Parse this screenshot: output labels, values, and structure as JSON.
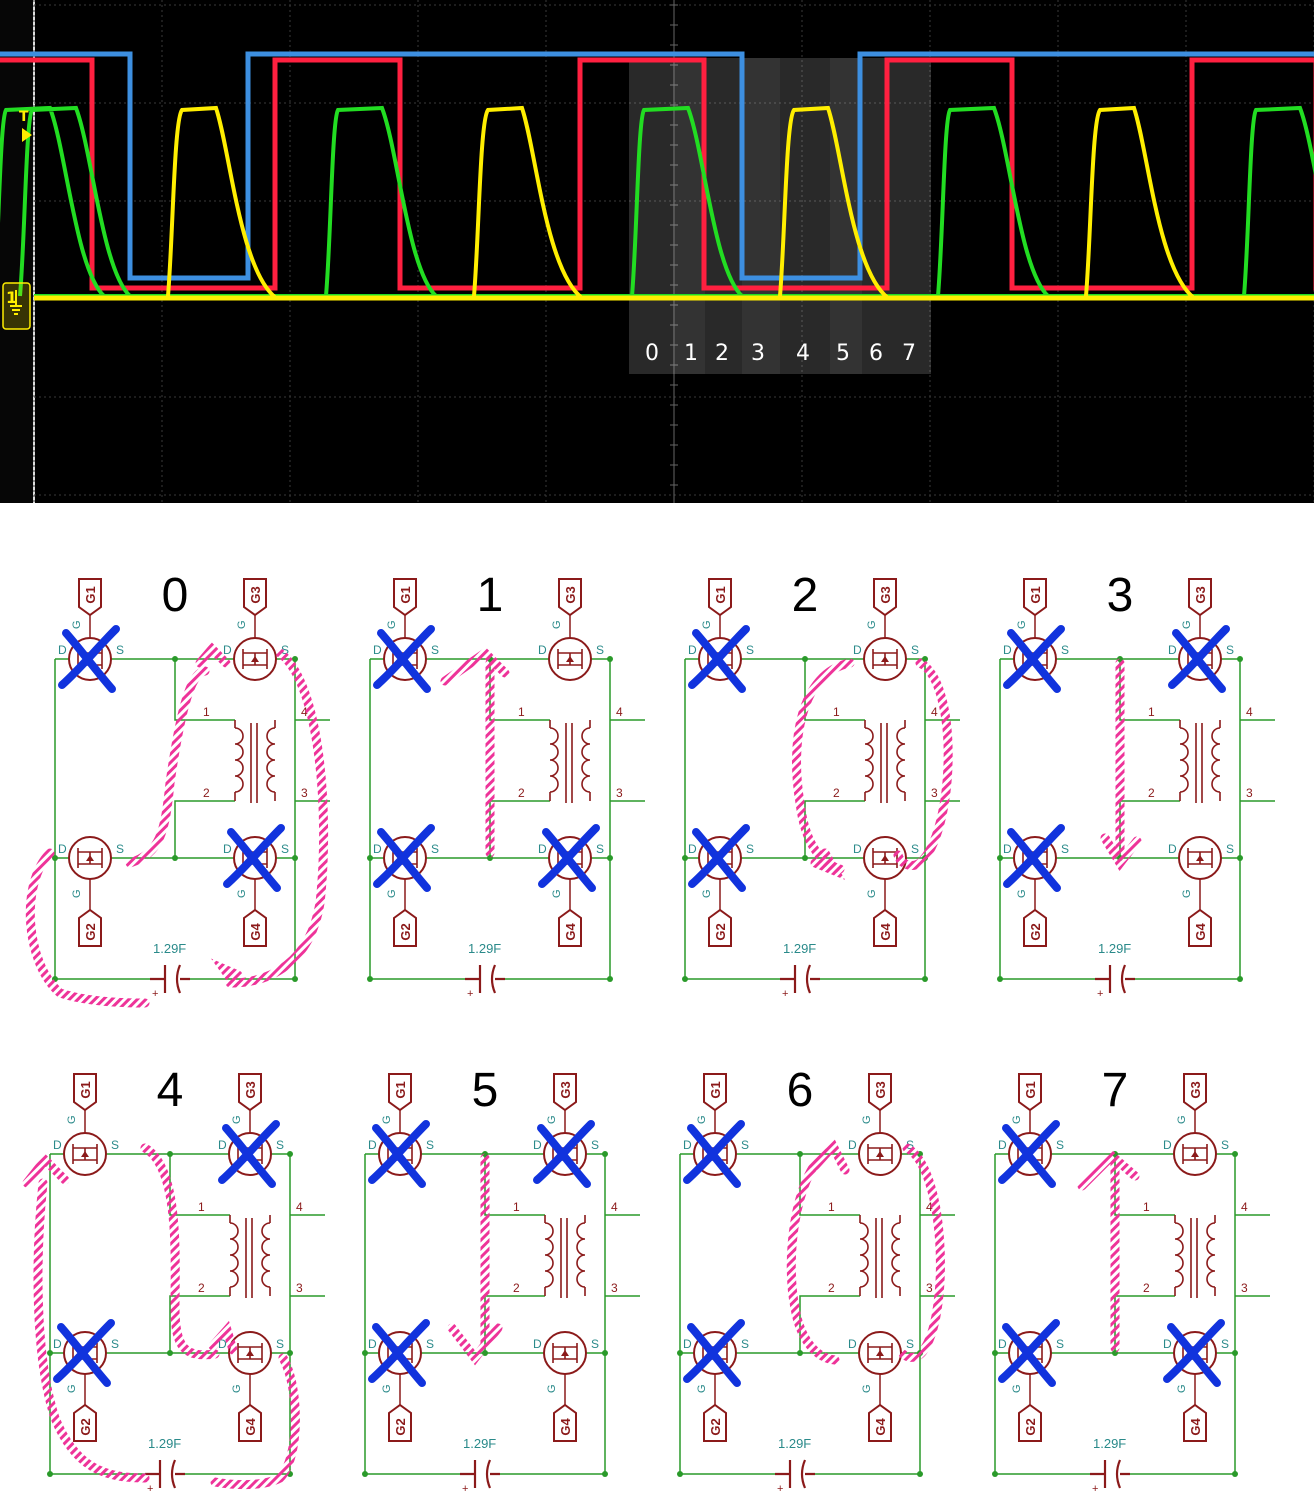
{
  "scope": {
    "trigger_label": "T",
    "channel_label": "1",
    "state_labels": [
      "0",
      "1",
      "2",
      "3",
      "4",
      "5",
      "6",
      "7"
    ],
    "trace_colors": {
      "ch1": "#ffee00",
      "ch2": "#22dd22",
      "ch3": "#3d8fe0",
      "ch4": "#ff2040"
    }
  },
  "panels": [
    {
      "title": "0",
      "g1": "G1",
      "g2": "G2",
      "g3": "G3",
      "g4": "G4",
      "cap": "1.29F",
      "plus": "+",
      "p1": "1",
      "p2": "2",
      "p3": "3",
      "p4": "4",
      "g": "G",
      "d": "D",
      "s": "S",
      "off": [
        "q1",
        "q4"
      ]
    },
    {
      "title": "1",
      "g1": "G1",
      "g2": "G2",
      "g3": "G3",
      "g4": "G4",
      "cap": "1.29F",
      "plus": "+",
      "p1": "1",
      "p2": "2",
      "p3": "3",
      "p4": "4",
      "g": "G",
      "d": "D",
      "s": "S",
      "off": [
        "q1",
        "q2",
        "q4"
      ]
    },
    {
      "title": "2",
      "g1": "G1",
      "g2": "G2",
      "g3": "G3",
      "g4": "G4",
      "cap": "1.29F",
      "plus": "+",
      "p1": "1",
      "p2": "2",
      "p3": "3",
      "p4": "4",
      "g": "G",
      "d": "D",
      "s": "S",
      "off": [
        "q1",
        "q2"
      ]
    },
    {
      "title": "3",
      "g1": "G1",
      "g2": "G2",
      "g3": "G3",
      "g4": "G4",
      "cap": "1.29F",
      "plus": "+",
      "p1": "1",
      "p2": "2",
      "p3": "3",
      "p4": "4",
      "g": "G",
      "d": "D",
      "s": "S",
      "off": [
        "q1",
        "q2",
        "q3"
      ]
    },
    {
      "title": "4",
      "g1": "G1",
      "g2": "G2",
      "g3": "G3",
      "g4": "G4",
      "cap": "1.29F",
      "plus": "+",
      "p1": "1",
      "p2": "2",
      "p3": "3",
      "p4": "4",
      "g": "G",
      "d": "D",
      "s": "S",
      "off": [
        "q2",
        "q3"
      ]
    },
    {
      "title": "5",
      "g1": "G1",
      "g2": "G2",
      "g3": "G3",
      "g4": "G4",
      "cap": "1.29F",
      "plus": "+",
      "p1": "1",
      "p2": "2",
      "p3": "3",
      "p4": "4",
      "g": "G",
      "d": "D",
      "s": "S",
      "off": [
        "q1",
        "q2",
        "q3"
      ]
    },
    {
      "title": "6",
      "g1": "G1",
      "g2": "G2",
      "g3": "G3",
      "g4": "G4",
      "cap": "1.29F",
      "plus": "+",
      "p1": "1",
      "p2": "2",
      "p3": "3",
      "p4": "4",
      "g": "G",
      "d": "D",
      "s": "S",
      "off": [
        "q1",
        "q2"
      ]
    },
    {
      "title": "7",
      "g1": "G1",
      "g2": "G2",
      "g3": "G3",
      "g4": "G4",
      "cap": "1.29F",
      "plus": "+",
      "p1": "1",
      "p2": "2",
      "p3": "3",
      "p4": "4",
      "g": "G",
      "d": "D",
      "s": "S",
      "off": [
        "q1",
        "q2",
        "q4"
      ]
    }
  ],
  "colors": {
    "wire": "#2a9a2a",
    "part": "#8b1a1a",
    "cross": "#1133dd",
    "flow": "#ee3399"
  }
}
